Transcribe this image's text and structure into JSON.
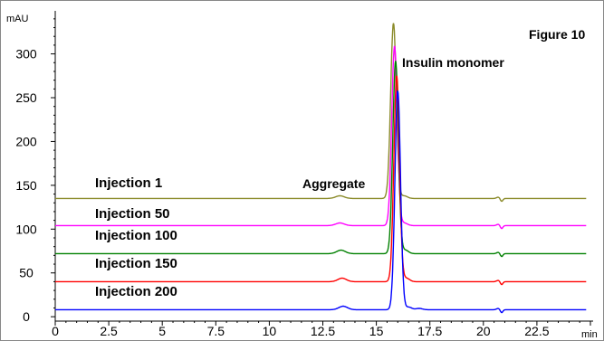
{
  "chart_data": {
    "type": "line",
    "title": "Figure 10",
    "xlabel": "min",
    "ylabel": "mAU",
    "xlim": [
      0,
      25
    ],
    "ylim": [
      -5,
      345
    ],
    "x_ticks": [
      0,
      2.5,
      5,
      7.5,
      10,
      12.5,
      15,
      17.5,
      20,
      22.5
    ],
    "x_tick_labels": [
      "0",
      "2.5",
      "5",
      "7.5",
      "10",
      "12.5",
      "15",
      "17.5",
      "20",
      "22.5"
    ],
    "y_ticks": [
      0,
      50,
      100,
      150,
      200,
      250,
      300
    ],
    "y_tick_labels": [
      "0",
      "50",
      "100",
      "150",
      "200",
      "250",
      "300"
    ],
    "annotations": [
      {
        "text": "Aggregate",
        "x": 13.2,
        "y": 142
      },
      {
        "text": "Insulin monomer",
        "x": 15.9,
        "y": 305
      }
    ],
    "series": [
      {
        "name": "Injection 1",
        "color": "#8B8B2A",
        "baseline": 135,
        "peaks": [
          {
            "x": 13.3,
            "height": 3,
            "width": 0.2
          },
          {
            "x": 15.8,
            "height": 200,
            "width": 0.13
          },
          {
            "x": 16.3,
            "height": 3,
            "width": 0.15
          },
          {
            "x": 20.7,
            "height": 1.5,
            "width": 0.08
          },
          {
            "x": 20.85,
            "height": -3.5,
            "width": 0.06
          }
        ]
      },
      {
        "name": "Injection 50",
        "color": "#FF00FF",
        "baseline": 104,
        "peaks": [
          {
            "x": 13.3,
            "height": 3,
            "width": 0.2
          },
          {
            "x": 15.85,
            "height": 205,
            "width": 0.13
          },
          {
            "x": 16.3,
            "height": 3,
            "width": 0.15
          },
          {
            "x": 20.7,
            "height": 1.5,
            "width": 0.08
          },
          {
            "x": 20.85,
            "height": -3.5,
            "width": 0.06
          }
        ]
      },
      {
        "name": "Injection 100",
        "color": "#008000",
        "baseline": 72,
        "peaks": [
          {
            "x": 13.35,
            "height": 4,
            "width": 0.2
          },
          {
            "x": 15.9,
            "height": 220,
            "width": 0.13
          },
          {
            "x": 16.35,
            "height": 4,
            "width": 0.15
          },
          {
            "x": 20.7,
            "height": 1.5,
            "width": 0.08
          },
          {
            "x": 20.85,
            "height": -3.5,
            "width": 0.06
          }
        ]
      },
      {
        "name": "Injection 150",
        "color": "#FF0000",
        "baseline": 40,
        "peaks": [
          {
            "x": 13.4,
            "height": 4,
            "width": 0.2
          },
          {
            "x": 15.95,
            "height": 235,
            "width": 0.13
          },
          {
            "x": 16.4,
            "height": 4,
            "width": 0.15
          },
          {
            "x": 20.7,
            "height": 1.5,
            "width": 0.08
          },
          {
            "x": 20.85,
            "height": -3.5,
            "width": 0.06
          }
        ]
      },
      {
        "name": "Injection 200",
        "color": "#0000FF",
        "baseline": 8,
        "peaks": [
          {
            "x": 13.45,
            "height": 4,
            "width": 0.2
          },
          {
            "x": 16.0,
            "height": 250,
            "width": 0.13
          },
          {
            "x": 16.5,
            "height": 3,
            "width": 0.15
          },
          {
            "x": 17.0,
            "height": 1.5,
            "width": 0.15
          },
          {
            "x": 20.7,
            "height": 1.5,
            "width": 0.08
          },
          {
            "x": 20.85,
            "height": -3.5,
            "width": 0.06
          }
        ]
      }
    ]
  }
}
